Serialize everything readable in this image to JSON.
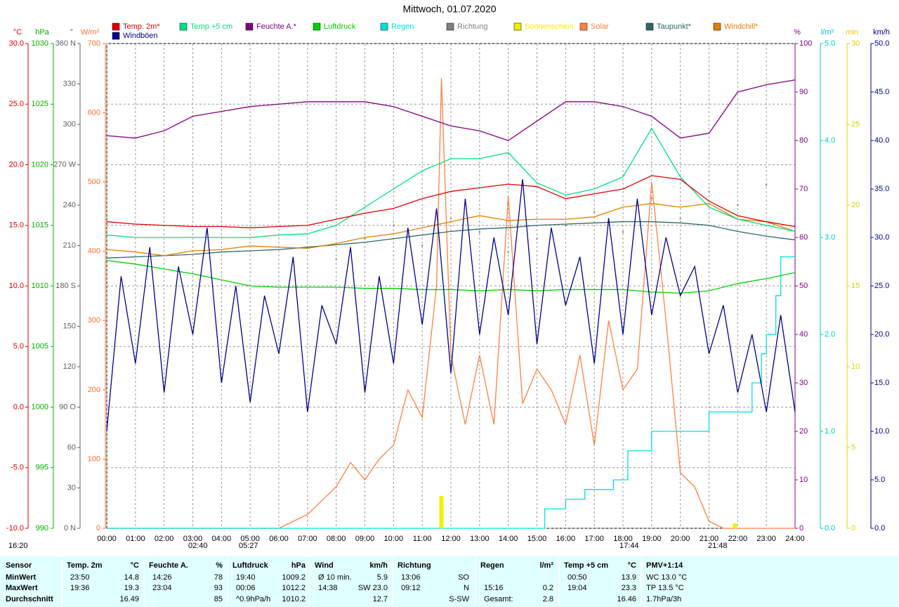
{
  "chart_data": {
    "type": "line",
    "title": "Mittwoch, 01.07.2020",
    "xlim": [
      0,
      24
    ],
    "xticks": [
      {
        "value": 0,
        "label": "00:00"
      },
      {
        "value": 1,
        "label": "01:00"
      },
      {
        "value": 2,
        "label": "02:00"
      },
      {
        "value": 3,
        "label": "03:00"
      },
      {
        "value": 4,
        "label": "04:00"
      },
      {
        "value": 5,
        "label": "05:00"
      },
      {
        "value": 6,
        "label": "06:00"
      },
      {
        "value": 7,
        "label": "07:00"
      },
      {
        "value": 8,
        "label": "08:00"
      },
      {
        "value": 9,
        "label": "09:00"
      },
      {
        "value": 10,
        "label": "10:00"
      },
      {
        "value": 11,
        "label": "11:00"
      },
      {
        "value": 12,
        "label": "12:00"
      },
      {
        "value": 13,
        "label": "13:00"
      },
      {
        "value": 14,
        "label": "14:00"
      },
      {
        "value": 15,
        "label": "15:00"
      },
      {
        "value": 16,
        "label": "16:00"
      },
      {
        "value": 17,
        "label": "17:00"
      },
      {
        "value": 18,
        "label": "18:00"
      },
      {
        "value": 19,
        "label": "19:00"
      },
      {
        "value": 20,
        "label": "20:00"
      },
      {
        "value": 21,
        "label": "21:00"
      },
      {
        "value": 22,
        "label": "22:00"
      },
      {
        "value": 23,
        "label": "23:00"
      },
      {
        "value": 24,
        "label": "24:00"
      }
    ],
    "grid": true,
    "x": [
      0,
      1,
      2,
      3,
      4,
      5,
      6,
      7,
      8,
      9,
      10,
      11,
      12,
      13,
      14,
      15,
      16,
      17,
      18,
      19,
      20,
      21,
      22,
      23,
      24
    ],
    "axes": [
      {
        "unit": "°C",
        "color": "#e00000",
        "lim": [
          -10,
          30
        ],
        "ticks": [
          {
            "value": -10,
            "label": "-10.0"
          },
          {
            "value": -5,
            "label": "-5.0"
          },
          {
            "value": 0,
            "label": "0.0"
          },
          {
            "value": 5,
            "label": "5.0"
          },
          {
            "value": 10,
            "label": "10.0"
          },
          {
            "value": 15,
            "label": "15.0"
          },
          {
            "value": 20,
            "label": "20.0"
          },
          {
            "value": 25,
            "label": "25.0"
          },
          {
            "value": 30,
            "label": "30.0"
          }
        ]
      },
      {
        "unit": "hPa",
        "color": "#00b000",
        "lim": [
          990,
          1030
        ],
        "ticks": [
          990,
          995,
          1000,
          1005,
          1010,
          1015,
          1020,
          1025,
          1030
        ]
      },
      {
        "unit": "°",
        "color": "#606060",
        "lim": [
          0,
          360
        ],
        "ticks": [
          {
            "value": 0,
            "label": "0 N"
          },
          30,
          60,
          {
            "value": 90,
            "label": "90 O"
          },
          120,
          150,
          {
            "value": 180,
            "label": "180 S"
          },
          210,
          240,
          {
            "value": 270,
            "label": "270 W"
          },
          300,
          330,
          {
            "value": 360,
            "label": "360 N"
          }
        ]
      },
      {
        "unit": "W/m²",
        "color": "#ff7030",
        "lim": [
          0,
          700
        ],
        "ticks": [
          0,
          100,
          200,
          300,
          400,
          500,
          600,
          700
        ]
      },
      {
        "unit": "%",
        "color": "#800080",
        "lim": [
          0,
          100
        ],
        "ticks": [
          0,
          10,
          20,
          30,
          40,
          50,
          60,
          70,
          80,
          90,
          100
        ]
      },
      {
        "unit": "l/m²",
        "color": "#00c8c8",
        "lim": [
          0,
          5
        ],
        "ticks": [
          {
            "value": 0,
            "label": "0.0"
          },
          {
            "value": 1,
            "label": "1.0"
          },
          {
            "value": 2,
            "label": "2.0"
          },
          {
            "value": 3,
            "label": "3.0"
          },
          {
            "value": 4,
            "label": "4.0"
          },
          {
            "value": 5,
            "label": "5.0"
          }
        ]
      },
      {
        "unit": "min",
        "color": "#e0d000",
        "lim": [
          0,
          30
        ],
        "ticks": [
          0,
          5,
          10,
          15,
          20,
          25,
          30
        ]
      },
      {
        "unit": "km/h",
        "color": "#000080",
        "lim": [
          0,
          50
        ],
        "ticks": [
          {
            "value": 0,
            "label": "0.0"
          },
          {
            "value": 5,
            "label": "5.0"
          },
          {
            "value": 10,
            "label": "10.0"
          },
          {
            "value": 15,
            "label": "15.0"
          },
          {
            "value": 20,
            "label": "20.0"
          },
          {
            "value": 25,
            "label": "25.0"
          },
          {
            "value": 30,
            "label": "30.0"
          },
          {
            "value": 35,
            "label": "35.0"
          },
          {
            "value": 40,
            "label": "40.0"
          },
          {
            "value": 45,
            "label": "45.0"
          },
          {
            "value": 50,
            "label": "50.0"
          }
        ]
      }
    ],
    "series": [
      {
        "name": "Temp. 2m*",
        "color": "#e00000",
        "axis": 0,
        "mark": "line",
        "values": [
          15.3,
          15.1,
          15.0,
          14.9,
          14.9,
          14.8,
          14.9,
          15.0,
          15.5,
          16.0,
          16.4,
          17.2,
          17.8,
          18.1,
          18.4,
          18.2,
          17.2,
          17.6,
          18.0,
          19.1,
          18.8,
          17.0,
          15.8,
          15.3,
          14.9
        ]
      },
      {
        "name": "Temp +5 cm",
        "color": "#00e080",
        "axis": 0,
        "mark": "line",
        "values": [
          14.2,
          14.0,
          14.0,
          14.0,
          14.0,
          14.0,
          14.2,
          14.3,
          15.0,
          16.5,
          18.0,
          19.5,
          20.5,
          20.5,
          21.0,
          18.5,
          17.5,
          18.0,
          19.0,
          23.0,
          19.0,
          16.5,
          15.5,
          15.0,
          14.5
        ]
      },
      {
        "name": "Feuchte A.*",
        "color": "#800080",
        "axis": 4,
        "mark": "line",
        "values": [
          81,
          80.5,
          82,
          85,
          86,
          87,
          87.5,
          88,
          88,
          88,
          87,
          85,
          83,
          82,
          80,
          84,
          88,
          88,
          87,
          85,
          80.5,
          81.5,
          90,
          91.5,
          92.5
        ]
      },
      {
        "name": "Luftdruck",
        "color": "#00d000",
        "axis": 1,
        "mark": "line",
        "values": [
          1012.1,
          1011.8,
          1011.4,
          1011.0,
          1010.5,
          1010.0,
          1009.9,
          1009.9,
          1009.9,
          1009.8,
          1009.8,
          1009.7,
          1009.7,
          1009.6,
          1009.7,
          1009.6,
          1009.7,
          1009.7,
          1009.7,
          1009.5,
          1009.4,
          1009.6,
          1010.2,
          1010.6,
          1011.1
        ]
      },
      {
        "name": "Regen",
        "color": "#00e0e0",
        "axis": 5,
        "mark": "step",
        "x": [
          0,
          15.27,
          16,
          16.67,
          17.67,
          18.17,
          19,
          21,
          22.5,
          22.83,
          23,
          23.33,
          23.5,
          24
        ],
        "values": [
          0,
          0.2,
          0.3,
          0.4,
          0.5,
          0.8,
          1.0,
          1.2,
          1.5,
          1.8,
          2.0,
          2.4,
          2.8,
          2.8
        ]
      },
      {
        "name": "Richtung",
        "color": "#808080",
        "axis": 2,
        "mark": "dots",
        "x": [
          8,
          9,
          10,
          11,
          12,
          13,
          14,
          15,
          16,
          17,
          18,
          19,
          20,
          21,
          22,
          23,
          24
        ],
        "values": [
          200,
          215,
          225,
          210,
          230,
          220,
          205,
          215,
          225,
          235,
          220,
          245,
          230,
          250,
          240,
          255,
          230
        ]
      },
      {
        "name": "Sonnenschein",
        "color": "#f0f000",
        "axis": 6,
        "mark": "bar",
        "x": [
          11.67,
          21.9
        ],
        "values": [
          2,
          0.3
        ]
      },
      {
        "name": "Solar",
        "color": "#ff8040",
        "axis": 3,
        "mark": "line",
        "x": [
          0,
          0.5,
          1,
          1.5,
          2,
          2.5,
          3,
          3.5,
          4,
          4.5,
          5,
          5.5,
          6,
          6.5,
          7,
          7.5,
          8,
          8.5,
          9,
          9.5,
          10,
          10.5,
          11,
          11.5,
          11.67,
          12,
          12.5,
          13,
          13.5,
          14,
          14.5,
          15,
          15.5,
          16,
          16.5,
          17,
          17.5,
          18,
          18.5,
          19,
          19.5,
          20,
          20.5,
          21,
          21.5,
          22,
          22.5,
          23,
          23.5,
          24
        ],
        "values": [
          0,
          0,
          0,
          0,
          0,
          0,
          0,
          0,
          0,
          0,
          0,
          0,
          0,
          10,
          20,
          40,
          60,
          95,
          70,
          100,
          120,
          200,
          160,
          350,
          650,
          250,
          150,
          250,
          150,
          480,
          180,
          230,
          200,
          150,
          250,
          120,
          300,
          200,
          230,
          500,
          300,
          80,
          60,
          10,
          0,
          0,
          0,
          0,
          0,
          0
        ]
      },
      {
        "name": "Taupunkt*",
        "color": "#306868",
        "axis": 0,
        "mark": "line",
        "values": [
          12.3,
          12.4,
          12.5,
          12.6,
          12.8,
          12.9,
          13.0,
          13.2,
          13.4,
          13.6,
          13.9,
          14.2,
          14.5,
          14.7,
          14.8,
          15.0,
          15.1,
          15.2,
          15.3,
          15.3,
          15.2,
          15.0,
          14.5,
          14.1,
          13.8
        ]
      },
      {
        "name": "Windchill*",
        "color": "#e08000",
        "axis": 0,
        "mark": "line",
        "values": [
          13.0,
          12.8,
          12.5,
          12.9,
          13.0,
          13.3,
          13.2,
          13.1,
          13.5,
          14.0,
          14.3,
          14.8,
          15.3,
          15.8,
          15.4,
          15.5,
          15.5,
          15.7,
          16.5,
          16.8,
          16.5,
          16.8,
          15.5,
          15.3,
          14.5
        ]
      },
      {
        "name": "Windböen",
        "color": "#000090",
        "axis": 7,
        "mark": "line",
        "x": [
          0,
          0.5,
          1,
          1.5,
          2,
          2.5,
          3,
          3.5,
          4,
          4.5,
          5,
          5.5,
          6,
          6.5,
          7,
          7.5,
          8,
          8.5,
          9,
          9.5,
          10,
          10.5,
          11,
          11.5,
          12,
          12.5,
          13,
          13.5,
          14,
          14.5,
          15,
          15.5,
          16,
          16.5,
          17,
          17.5,
          18,
          18.5,
          19,
          19.5,
          20,
          20.5,
          21,
          21.5,
          22,
          22.5,
          23,
          23.5,
          24
        ],
        "values": [
          10,
          26,
          17,
          29,
          14,
          27,
          20,
          31,
          15,
          25,
          13,
          24,
          18,
          28,
          12,
          23,
          19,
          29,
          14,
          26,
          17,
          31,
          21,
          33,
          16,
          34,
          20,
          30,
          22,
          36,
          19,
          31,
          23,
          28,
          17,
          32,
          20,
          34,
          22,
          30,
          24,
          27,
          18,
          23,
          14,
          20,
          12,
          22,
          12
        ]
      }
    ],
    "annotations": [
      "16:20",
      "02:40",
      "05:27",
      "17:44",
      "21:48"
    ]
  },
  "table": {
    "row_header": "Sensor",
    "row_labels": [
      "MinWert",
      "MaxWert",
      "Durchschnitt"
    ],
    "groups": [
      {
        "name": "Temp. 2m",
        "unit": "°C",
        "rows": [
          [
            "23:50",
            "14.8"
          ],
          [
            "19:36",
            "19.3"
          ],
          [
            null,
            "16.49"
          ]
        ]
      },
      {
        "name": "Feuchte A.",
        "unit": "%",
        "rows": [
          [
            "14:26",
            "78"
          ],
          [
            "23:04",
            "93"
          ],
          [
            null,
            "85"
          ]
        ]
      },
      {
        "name": "Luftdruck",
        "unit": "hPa",
        "rows": [
          [
            "19:40",
            "1009.2"
          ],
          [
            "00:06",
            "1012.2"
          ],
          [
            "^0.9hPa/h",
            "1010.2"
          ]
        ]
      },
      {
        "name": "Wind",
        "unit": "km/h",
        "rows": [
          [
            "Ø 10 min.",
            "5.9"
          ],
          [
            "14:38",
            "SW 23.0"
          ],
          [
            null,
            "12.7"
          ]
        ]
      },
      {
        "name": "Richtung",
        "rows": [
          [
            "13:06",
            "SO"
          ],
          [
            "09:12",
            "N"
          ],
          [
            null,
            "S-SW"
          ]
        ]
      },
      {
        "name": "Regen",
        "unit": "l/m²",
        "rows": [
          [
            null,
            null
          ],
          [
            "15:16",
            "0.2"
          ],
          [
            "Gesamt:",
            "2.8"
          ]
        ]
      },
      {
        "name": "Temp +5 cm",
        "unit": "°C",
        "rows": [
          [
            "00:50",
            "13.9"
          ],
          [
            "19:04",
            "23.3"
          ],
          [
            null,
            "16.46"
          ]
        ]
      },
      {
        "name": "PMV+1:14",
        "rows": [
          [
            "WC 13.0 °C"
          ],
          [
            "TP 13.5 °C"
          ],
          [
            "1.7hPa/3h"
          ]
        ]
      }
    ]
  }
}
